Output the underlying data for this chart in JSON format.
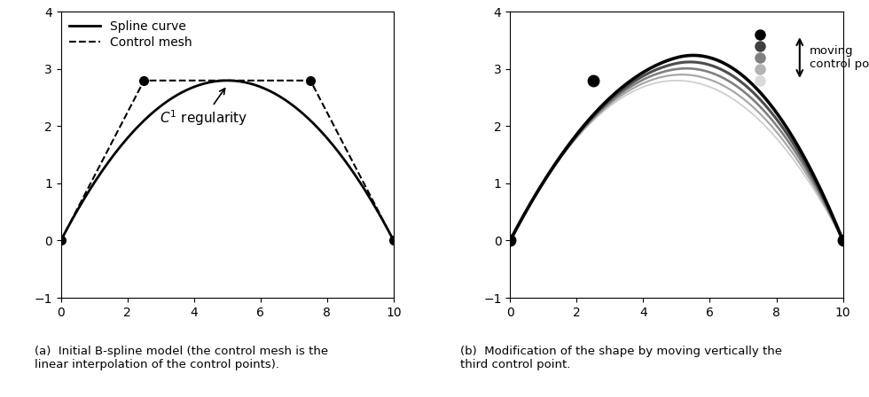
{
  "ctrl_pts_left": [
    [
      0,
      0
    ],
    [
      2.5,
      2.8
    ],
    [
      7.5,
      2.8
    ],
    [
      10,
      0
    ]
  ],
  "ylim": [
    -1,
    4
  ],
  "xlim": [
    0,
    10
  ],
  "yticks": [
    -1,
    0,
    1,
    2,
    3,
    4
  ],
  "xticks": [
    0,
    2,
    4,
    6,
    8,
    10
  ],
  "moving_ctrl_y_values": [
    2.8,
    3.0,
    3.2,
    3.4,
    3.6
  ],
  "fixed_ctrl_left_x": 2.5,
  "fixed_ctrl_left_y": 2.8,
  "fixed_ctrl_right_x": 10,
  "fixed_ctrl_right_y": 0,
  "moving_ctrl_x": 7.5,
  "annotation_text": "$C^1$ regularity",
  "label_a": "(a)  Initial B-spline model (the control mesh is the\nlinear interpolation of the control points).",
  "label_b": "(b)  Modification of the shape by moving vertically the\nthird control point.",
  "moving_label": "moving\ncontrol point",
  "legend_spline": "Spline curve",
  "legend_mesh": "Control mesh",
  "curve_colors_light_to_dark": [
    "0.80",
    "0.65",
    "0.50",
    "0.30",
    "0.0"
  ],
  "dot_colors_high_to_low": [
    "0.0",
    "0.25",
    "0.50",
    "0.70",
    "0.85"
  ]
}
